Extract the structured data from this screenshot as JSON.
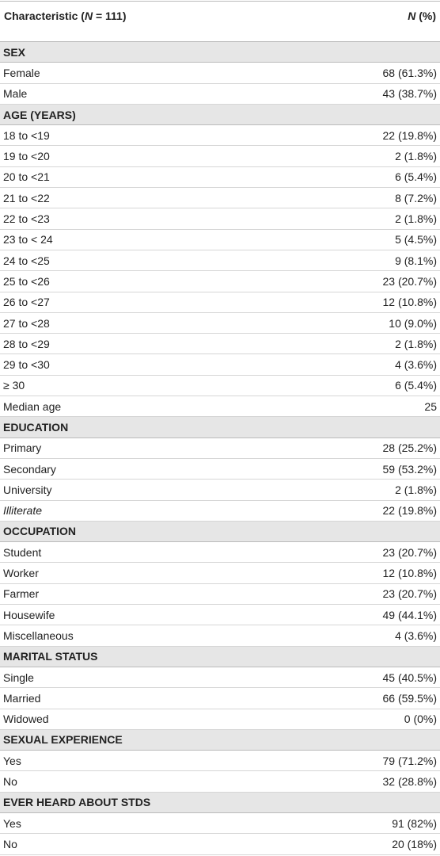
{
  "header": {
    "left": [
      "Characteristic (",
      "N",
      " = 111)"
    ],
    "right": [
      "N",
      " (%)"
    ]
  },
  "sections": [
    {
      "title": "SEX",
      "rows": [
        [
          "Female",
          "68 (61.3%)"
        ],
        [
          "Male",
          "43 (38.7%)"
        ]
      ]
    },
    {
      "title": "AGE (YEARS)",
      "rows": [
        [
          "18 to <19",
          "22 (19.8%)"
        ],
        [
          "19 to <20",
          "2 (1.8%)"
        ],
        [
          "20 to <21",
          "6 (5.4%)"
        ],
        [
          "21 to <22",
          "8 (7.2%)"
        ],
        [
          "22 to <23",
          "2 (1.8%)"
        ],
        [
          "23 to < 24",
          "5 (4.5%)"
        ],
        [
          "24 to <25",
          "9 (8.1%)"
        ],
        [
          "25 to <26",
          "23 (20.7%)"
        ],
        [
          "26 to <27",
          "12 (10.8%)"
        ],
        [
          "27 to <28",
          "10 (9.0%)"
        ],
        [
          "28 to <29",
          "2 (1.8%)"
        ],
        [
          "29 to <30",
          "4 (3.6%)"
        ],
        [
          "≥ 30",
          "6 (5.4%)"
        ],
        [
          "Median age",
          "25"
        ]
      ]
    },
    {
      "title": "EDUCATION",
      "rows": [
        [
          "Primary",
          "28 (25.2%)"
        ],
        [
          "Secondary",
          "59 (53.2%)"
        ],
        [
          "University",
          "2 (1.8%)"
        ],
        [
          "Illiterate",
          "22 (19.8%)"
        ]
      ],
      "italic_rows": [
        3
      ]
    },
    {
      "title": "OCCUPATION",
      "rows": [
        [
          "Student",
          "23 (20.7%)"
        ],
        [
          "Worker",
          "12 (10.8%)"
        ],
        [
          "Farmer",
          "23 (20.7%)"
        ],
        [
          "Housewife",
          "49 (44.1%)"
        ],
        [
          "Miscellaneous",
          "4 (3.6%)"
        ]
      ]
    },
    {
      "title": "MARITAL STATUS",
      "rows": [
        [
          "Single",
          "45 (40.5%)"
        ],
        [
          "Married",
          "66 (59.5%)"
        ],
        [
          "Widowed",
          "0 (0%)"
        ]
      ]
    },
    {
      "title": "SEXUAL EXPERIENCE",
      "rows": [
        [
          "Yes",
          "79 (71.2%)"
        ],
        [
          "No",
          "32 (28.8%)"
        ]
      ]
    },
    {
      "title": "EVER HEARD ABOUT STDS",
      "rows": [
        [
          "Yes",
          "91 (82%)"
        ],
        [
          "No",
          "20 (18%)"
        ]
      ]
    }
  ]
}
